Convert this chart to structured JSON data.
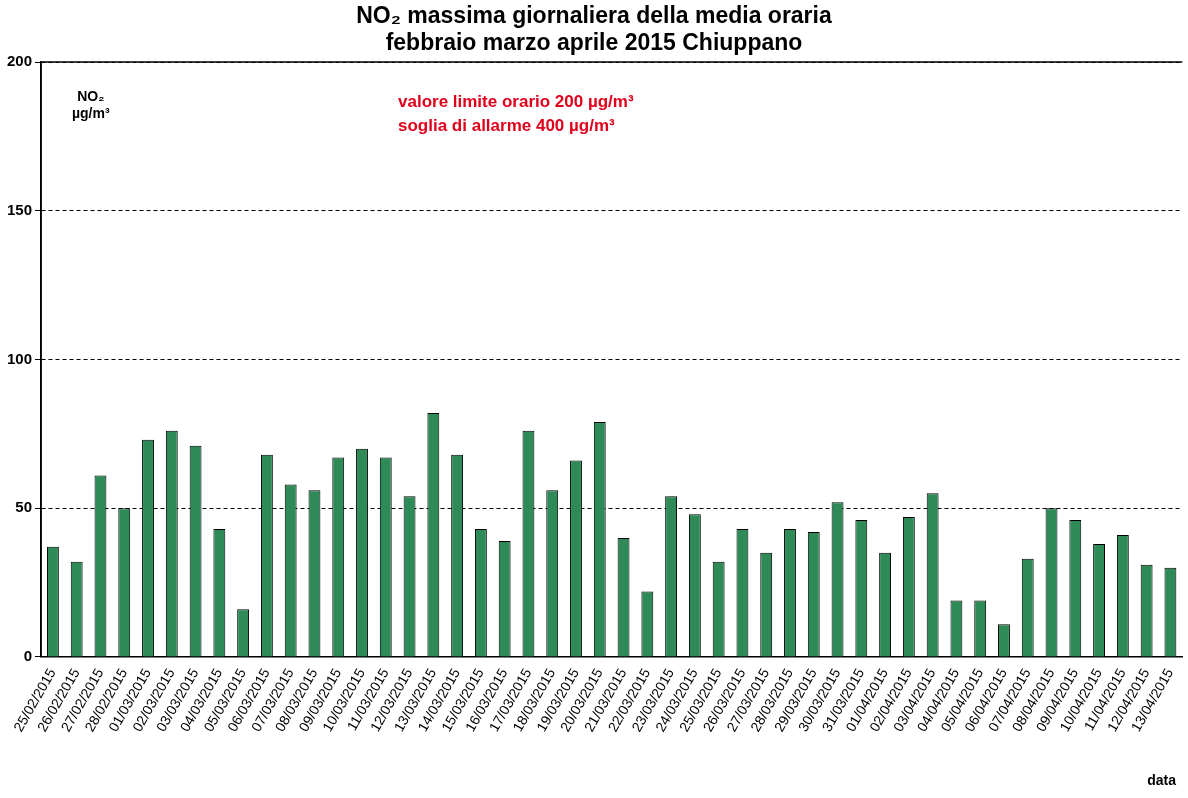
{
  "chart_data": {
    "type": "bar",
    "title": "NO₂ massima giornaliera della media oraria\nfebbraio marzo aprile 2015 Chiuppano",
    "ylabel": "NO₂\nµg/m³",
    "xlabel": "data",
    "annotations": [
      "valore limite orario 200 µg/m³\nsoglia di allarme 400 µg/m³"
    ],
    "categories": [
      "25/02/2015",
      "26/02/2015",
      "27/02/2015",
      "28/02/2015",
      "01/03/2015",
      "02/03/2015",
      "03/03/2015",
      "04/03/2015",
      "05/03/2015",
      "06/03/2015",
      "07/03/2015",
      "08/03/2015",
      "09/03/2015",
      "10/03/2015",
      "11/03/2015",
      "12/03/2015",
      "13/03/2015",
      "14/03/2015",
      "15/03/2015",
      "16/03/2015",
      "17/03/2015",
      "18/03/2015",
      "19/03/2015",
      "20/03/2015",
      "21/03/2015",
      "22/03/2015",
      "23/03/2015",
      "24/03/2015",
      "25/03/2015",
      "26/03/2015",
      "27/03/2015",
      "28/03/2015",
      "29/03/2015",
      "30/03/2015",
      "31/03/2015",
      "01/04/2015",
      "02/04/2015",
      "03/04/2015",
      "04/04/2015",
      "05/04/2015",
      "06/04/2015",
      "07/04/2015",
      "08/04/2015",
      "09/04/2015",
      "10/04/2015",
      "11/04/2015",
      "12/04/2015",
      "13/04/2015"
    ],
    "values": [
      37,
      32,
      61,
      50,
      73,
      76,
      71,
      43,
      16,
      68,
      58,
      56,
      67,
      70,
      67,
      54,
      82,
      68,
      43,
      39,
      76,
      56,
      66,
      79,
      40,
      22,
      54,
      48,
      32,
      43,
      35,
      43,
      42,
      52,
      46,
      35,
      47,
      55,
      19,
      19,
      11,
      33,
      50,
      46,
      38,
      41,
      31,
      30
    ],
    "color": "#2e8b57",
    "ylim": [
      0,
      200
    ],
    "yticks": [
      0,
      50,
      100,
      150,
      200
    ],
    "grid": "y",
    "legend": false
  }
}
